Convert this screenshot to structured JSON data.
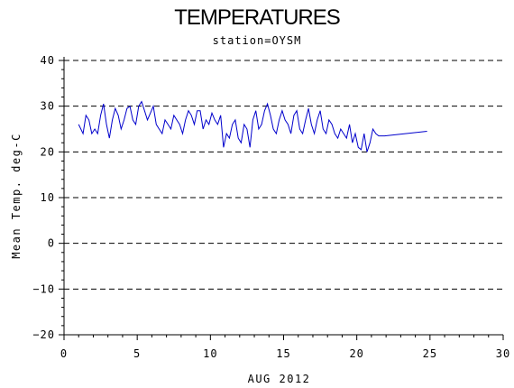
{
  "chart_data": {
    "type": "line",
    "title": "TEMPERATURES",
    "subtitle": "station=OYSM",
    "xlabel": "AUG 2012",
    "ylabel": "Mean Temp. deg-C",
    "xlim": [
      0,
      30
    ],
    "ylim": [
      -20,
      40
    ],
    "x_ticks": [
      0,
      5,
      10,
      15,
      20,
      25,
      30
    ],
    "y_ticks": [
      -20,
      -10,
      0,
      10,
      20,
      30,
      40
    ],
    "grid": "horizontal-dashed",
    "colors": {
      "series": "#0000cc",
      "grid": "#000000",
      "axis": "#000000"
    },
    "series": [
      {
        "x": [
          1.0,
          1.3,
          1.5,
          1.7,
          1.9,
          2.1,
          2.3,
          2.5,
          2.7,
          2.9,
          3.1,
          3.3,
          3.5,
          3.7,
          3.9,
          4.1,
          4.3,
          4.5,
          4.7,
          4.9,
          5.1,
          5.3,
          5.5,
          5.7,
          5.9,
          6.1,
          6.3,
          6.5,
          6.7,
          6.9,
          7.1,
          7.3,
          7.5,
          7.7,
          7.9,
          8.1,
          8.3,
          8.5,
          8.7,
          8.9,
          9.1,
          9.3,
          9.5,
          9.7,
          9.9,
          10.1,
          10.3,
          10.5,
          10.7,
          10.9,
          11.1,
          11.3,
          11.5,
          11.7,
          11.9,
          12.1,
          12.3,
          12.5,
          12.7,
          12.9,
          13.1,
          13.3,
          13.5,
          13.7,
          13.9,
          14.1,
          14.3,
          14.5,
          14.7,
          14.9,
          15.1,
          15.3,
          15.5,
          15.7,
          15.9,
          16.1,
          16.3,
          16.5,
          16.7,
          16.9,
          17.1,
          17.3,
          17.5,
          17.7,
          17.9,
          18.1,
          18.3,
          18.5,
          18.7,
          18.9,
          19.1,
          19.3,
          19.5,
          19.7,
          19.9,
          20.1,
          20.3,
          20.5,
          20.7,
          20.9,
          21.1,
          21.3,
          21.5,
          21.7,
          21.9,
          24.8
        ],
        "values": [
          26,
          24,
          28,
          27,
          24,
          25,
          24,
          28,
          30.5,
          26,
          23,
          27,
          29.5,
          28,
          25,
          27,
          29.5,
          30,
          27,
          26,
          30,
          31,
          29,
          27,
          28.5,
          30,
          26,
          25,
          24,
          27,
          26,
          25,
          28,
          27,
          26,
          24,
          27,
          29,
          28,
          26,
          29,
          29,
          25,
          27,
          26,
          28.5,
          27,
          26,
          28,
          21,
          24,
          23,
          26,
          27,
          23,
          22,
          26,
          25,
          21,
          27,
          29,
          25,
          26,
          29,
          30.5,
          28,
          25,
          24,
          27,
          29,
          27,
          26,
          24,
          28,
          29,
          25,
          24,
          27,
          29.5,
          26,
          24,
          27,
          29,
          25,
          24,
          27,
          26,
          24,
          23,
          25,
          24,
          23,
          26,
          22,
          24,
          21,
          20.5,
          24,
          20,
          22,
          25,
          24,
          23.5,
          23.5,
          23.5,
          24.5
        ]
      }
    ]
  }
}
